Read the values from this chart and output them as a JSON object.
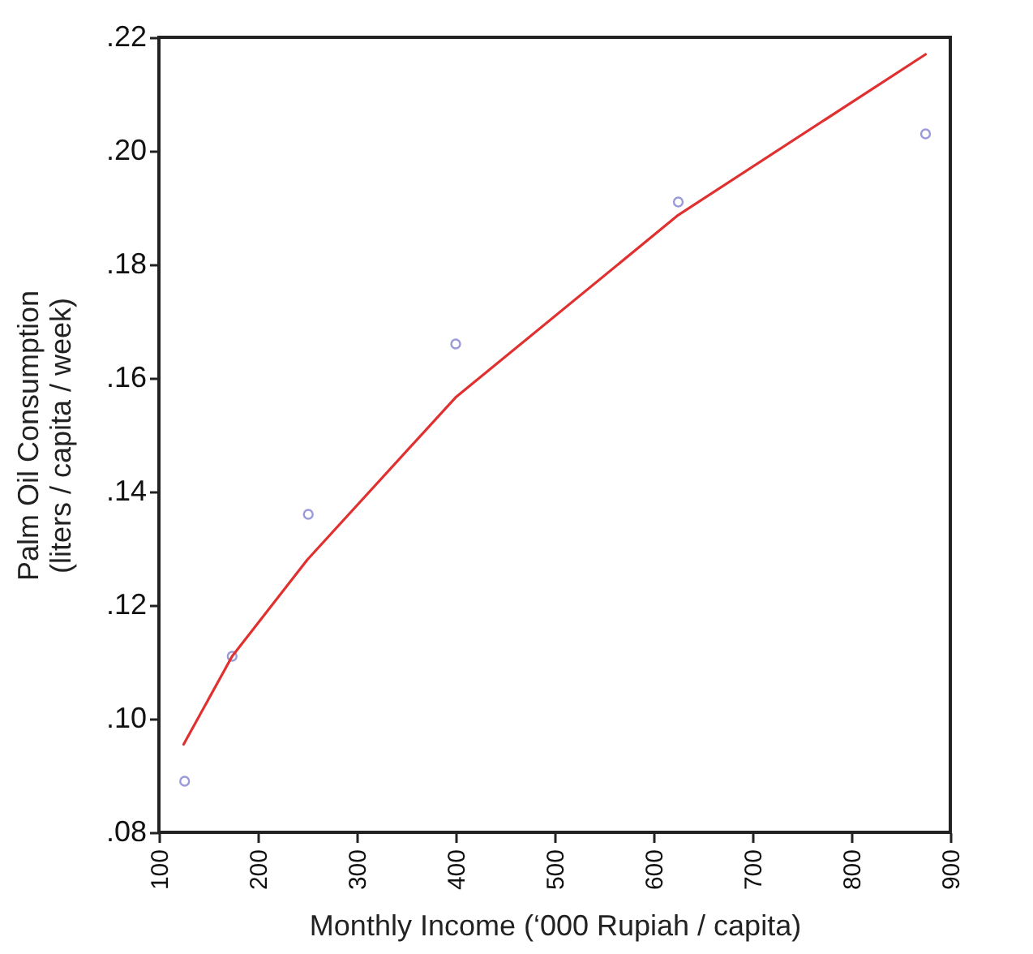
{
  "chart_data": {
    "type": "scatter",
    "xlabel": "Monthly Income (‘000 Rupiah / capita)",
    "ylabel": "Palm Oil Consumption\n(liters / capita / week)",
    "xlim": [
      100,
      900
    ],
    "xticks": [
      100,
      200,
      300,
      400,
      500,
      600,
      700,
      800,
      900
    ],
    "ylim": [
      0.08,
      0.22
    ],
    "yticks": [
      {
        "value": 0.08,
        "label": ".08"
      },
      {
        "value": 0.1,
        "label": ".10"
      },
      {
        "value": 0.12,
        "label": ".12"
      },
      {
        "value": 0.14,
        "label": ".14"
      },
      {
        "value": 0.16,
        "label": ".16"
      },
      {
        "value": 0.18,
        "label": ".18"
      },
      {
        "value": 0.2,
        "label": ".20"
      },
      {
        "value": 0.22,
        "label": ".22"
      }
    ],
    "grid": false,
    "series": [
      {
        "marker": "circle",
        "color": "#7070cc",
        "x": [
          126,
          174,
          251,
          400,
          625,
          875
        ],
        "values": [
          0.089,
          0.111,
          0.136,
          0.166,
          0.191,
          0.203
        ]
      },
      {
        "type": "line",
        "color": "#e03030",
        "x": [
          125,
          174,
          250,
          400,
          625,
          875
        ],
        "values": [
          0.0955,
          0.111,
          0.128,
          0.1566,
          0.1887,
          0.217
        ]
      }
    ]
  }
}
